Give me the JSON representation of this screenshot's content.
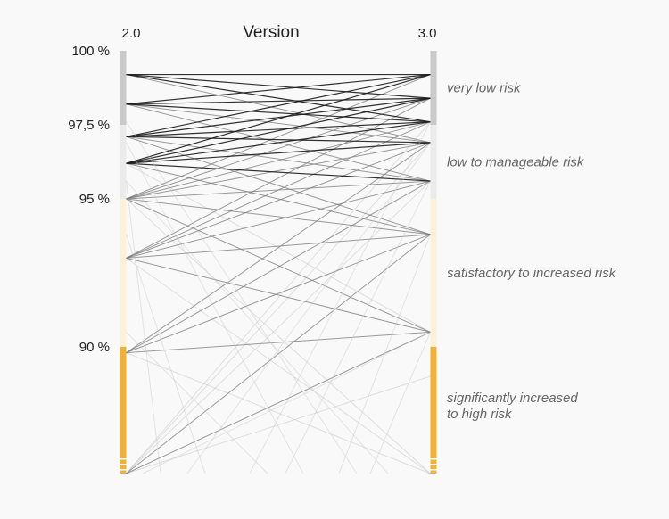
{
  "chart_data": {
    "type": "slope",
    "title": "Version",
    "xlabel": "",
    "ylabel": "",
    "categories": [
      "2.0",
      "3.0"
    ],
    "ylim": [
      85.7,
      100
    ],
    "yticks": [
      {
        "value": 100,
        "label": "100 %"
      },
      {
        "value": 97.5,
        "label": "97,5 %"
      },
      {
        "value": 95,
        "label": "95 %"
      },
      {
        "value": 90,
        "label": "90 %"
      }
    ],
    "bands": [
      {
        "label": "very low risk",
        "min": 97.5,
        "max": 100,
        "color": "#c9c9c9"
      },
      {
        "label": "low to manageable risk",
        "min": 95,
        "max": 97.5,
        "color": "#ebebeb"
      },
      {
        "label": "satisfactory to increased risk",
        "min": 90,
        "max": 95,
        "color": "#fdf1d8"
      },
      {
        "label": "significantly increased to high risk",
        "min": 85.7,
        "max": 90,
        "color": "#f2b132"
      }
    ],
    "band_labels": [
      {
        "lines": [
          "very low risk"
        ],
        "value": 98.75
      },
      {
        "lines": [
          "low to manageable risk"
        ],
        "value": 96.25
      },
      {
        "lines": [
          "satisfactory to increased risk"
        ],
        "value": 92.5
      },
      {
        "lines": [
          "significantly increased",
          "to high risk"
        ],
        "value": 88.0
      }
    ],
    "grid": false,
    "legend": "none",
    "lines": [
      {
        "v2": 99.2,
        "v3": 99.2,
        "weight": "dark"
      },
      {
        "v2": 99.2,
        "v3": 98.4,
        "weight": "dark"
      },
      {
        "v2": 99.2,
        "v3": 97.6,
        "weight": "dark"
      },
      {
        "v2": 99.2,
        "v3": 96.9,
        "weight": "mid"
      },
      {
        "v2": 98.2,
        "v3": 99.2,
        "weight": "dark"
      },
      {
        "v2": 98.2,
        "v3": 98.4,
        "weight": "dark"
      },
      {
        "v2": 98.2,
        "v3": 97.6,
        "weight": "dark"
      },
      {
        "v2": 98.2,
        "v3": 96.9,
        "weight": "mid"
      },
      {
        "v2": 98.2,
        "v3": 95.6,
        "weight": "mid"
      },
      {
        "v2": 97.1,
        "v3": 99.2,
        "weight": "dark"
      },
      {
        "v2": 97.1,
        "v3": 98.4,
        "weight": "dark"
      },
      {
        "v2": 97.1,
        "v3": 97.6,
        "weight": "dark"
      },
      {
        "v2": 97.1,
        "v3": 96.9,
        "weight": "dark"
      },
      {
        "v2": 97.1,
        "v3": 95.6,
        "weight": "mid"
      },
      {
        "v2": 97.1,
        "v3": 93.8,
        "weight": "mid"
      },
      {
        "v2": 96.2,
        "v3": 99.2,
        "weight": "dark"
      },
      {
        "v2": 96.2,
        "v3": 98.4,
        "weight": "dark"
      },
      {
        "v2": 96.2,
        "v3": 97.6,
        "weight": "dark"
      },
      {
        "v2": 96.2,
        "v3": 96.9,
        "weight": "dark"
      },
      {
        "v2": 96.2,
        "v3": 95.6,
        "weight": "dark"
      },
      {
        "v2": 96.2,
        "v3": 93.8,
        "weight": "mid"
      },
      {
        "v2": 96.2,
        "v3": 90.5,
        "weight": "light"
      },
      {
        "v2": 95.0,
        "v3": 99.2,
        "weight": "mid"
      },
      {
        "v2": 95.0,
        "v3": 98.4,
        "weight": "mid"
      },
      {
        "v2": 95.0,
        "v3": 97.6,
        "weight": "mid"
      },
      {
        "v2": 95.0,
        "v3": 96.9,
        "weight": "mid"
      },
      {
        "v2": 95.0,
        "v3": 95.6,
        "weight": "mid"
      },
      {
        "v2": 95.0,
        "v3": 93.8,
        "weight": "mid"
      },
      {
        "v2": 95.0,
        "v3": 90.5,
        "weight": "mid"
      },
      {
        "v2": 95.0,
        "v3": 85.7,
        "weight": "light"
      },
      {
        "v2": 93.0,
        "v3": 98.4,
        "weight": "mid"
      },
      {
        "v2": 93.0,
        "v3": 97.6,
        "weight": "mid"
      },
      {
        "v2": 93.0,
        "v3": 96.9,
        "weight": "mid"
      },
      {
        "v2": 93.0,
        "v3": 95.6,
        "weight": "mid"
      },
      {
        "v2": 93.0,
        "v3": 93.8,
        "weight": "mid"
      },
      {
        "v2": 93.0,
        "v3": 90.5,
        "weight": "mid"
      },
      {
        "v2": 93.0,
        "v3": 85.7,
        "weight": "light"
      },
      {
        "v2": 89.8,
        "v3": 96.9,
        "weight": "mid"
      },
      {
        "v2": 89.8,
        "v3": 95.6,
        "weight": "mid"
      },
      {
        "v2": 89.8,
        "v3": 93.8,
        "weight": "mid"
      },
      {
        "v2": 89.8,
        "v3": 90.5,
        "weight": "mid"
      },
      {
        "v2": 89.8,
        "v3": 85.7,
        "weight": "light"
      },
      {
        "v2": 85.7,
        "v3": 93.8,
        "weight": "mid"
      },
      {
        "v2": 85.7,
        "v3": 90.5,
        "weight": "mid"
      },
      {
        "v2": 85.7,
        "v3": 95.6,
        "weight": "light"
      },
      {
        "v2": 85.7,
        "v3": 96.9,
        "weight": "light"
      },
      {
        "v2": 85.7,
        "v3": 97.6,
        "weight": "light"
      },
      {
        "v2": 85.7,
        "v3": 89.0,
        "weight": "light"
      }
    ]
  }
}
